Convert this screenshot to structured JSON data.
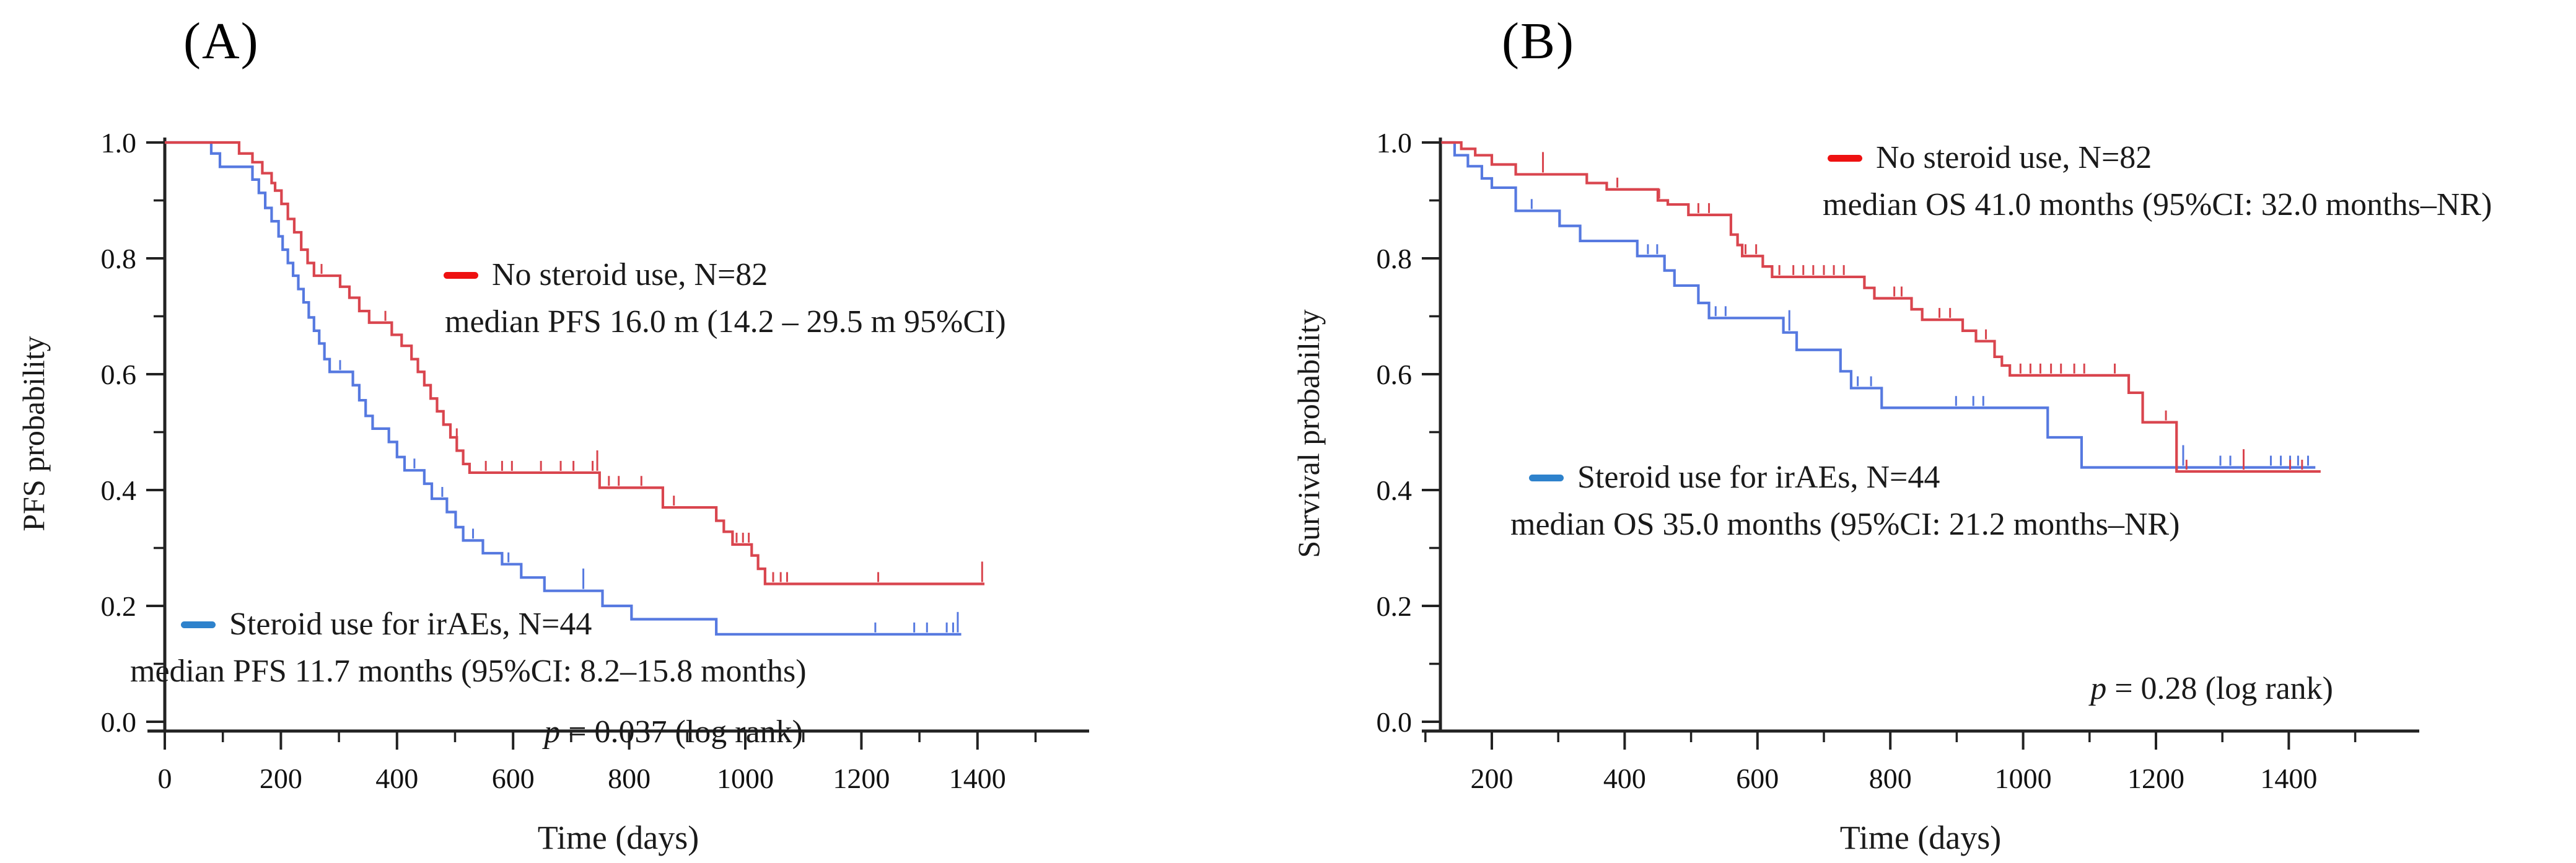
{
  "figure": {
    "background": "#ffffff",
    "text_color": "#1a1a1a",
    "red_curve_color": "#d9454e",
    "blue_curve_color": "#5679e0",
    "red_dash_color": "#ee1111",
    "blue_dash_color": "#2e82cc",
    "axis_color": "#222222"
  },
  "panels": [
    {
      "label": "(A)",
      "y_axis_title": "PFS probability",
      "x_axis_title": "Time (days)",
      "x_tick_labels": [
        "0",
        "200",
        "400",
        "600",
        "800",
        "1000",
        "1200",
        "1400"
      ],
      "y_tick_labels": [
        "1.0",
        "0.8",
        "0.6",
        "0.4",
        "0.2",
        "0.0"
      ],
      "legend_red": {
        "line1": "No steroid use, N=82",
        "line2": "median PFS 16.0 m (14.2 – 29.5 m 95%CI)"
      },
      "legend_blue": {
        "line1": "Steroid use for irAEs, N=44",
        "line2": "median PFS 11.7 months (95%CI: 8.2–15.8 months)"
      },
      "p_value": {
        "symbol": "p",
        "rest": " = 0.037 (log rank)"
      },
      "chart_data": {
        "type": "line",
        "subtype": "kaplan-meier-step",
        "title": "",
        "xlabel": "Time (days)",
        "ylabel": "PFS probability",
        "x_range": [
          0,
          1580
        ],
        "y_range": [
          0.0,
          1.0
        ],
        "x_major_ticks": [
          0,
          200,
          400,
          600,
          800,
          1000,
          1200,
          1400
        ],
        "x_minor_ticks": [
          100,
          300,
          500,
          700,
          900,
          1100,
          1300,
          1500
        ],
        "y_major_ticks": [
          1.0,
          0.8,
          0.6,
          0.4,
          0.2,
          0.0
        ],
        "y_minor_ticks": [
          0.9,
          0.7,
          0.5,
          0.3,
          0.1
        ],
        "grid": false,
        "series": [
          {
            "name": "Steroid use for irAEs, N=44",
            "color_key": "blue",
            "median_label": "median PFS 11.7 months",
            "steps": [
              [
                0,
                1.0
              ],
              [
                80,
                0.981
              ],
              [
                95,
                0.958
              ],
              [
                151,
                0.936
              ],
              [
                162,
                0.913
              ],
              [
                173,
                0.887
              ],
              [
                184,
                0.864
              ],
              [
                196,
                0.838
              ],
              [
                203,
                0.815
              ],
              [
                212,
                0.792
              ],
              [
                221,
                0.77
              ],
              [
                230,
                0.747
              ],
              [
                239,
                0.724
              ],
              [
                248,
                0.698
              ],
              [
                257,
                0.675
              ],
              [
                266,
                0.653
              ],
              [
                275,
                0.626
              ],
              [
                284,
                0.604
              ],
              [
                324,
                0.581
              ],
              [
                335,
                0.555
              ],
              [
                346,
                0.528
              ],
              [
                358,
                0.506
              ],
              [
                386,
                0.483
              ],
              [
                400,
                0.457
              ],
              [
                413,
                0.434
              ],
              [
                447,
                0.411
              ],
              [
                460,
                0.385
              ],
              [
                486,
                0.362
              ],
              [
                501,
                0.336
              ],
              [
                514,
                0.313
              ],
              [
                548,
                0.291
              ],
              [
                581,
                0.272
              ],
              [
                614,
                0.249
              ],
              [
                654,
                0.226
              ],
              [
                754,
                0.2
              ],
              [
                804,
                0.177
              ],
              [
                950,
                0.151
              ]
            ],
            "end_time": 1372,
            "censors": [
              302,
              430,
              478,
              531,
              592,
              1224,
              1291,
              1313,
              1347,
              1358
            ],
            "tall_censors": [
              721,
              1366
            ]
          },
          {
            "name": "No steroid use, N=82",
            "color_key": "red",
            "median_label": "median PFS 16.0 m",
            "steps": [
              [
                0,
                1.0
              ],
              [
                128,
                0.981
              ],
              [
                151,
                0.966
              ],
              [
                168,
                0.947
              ],
              [
                184,
                0.93
              ],
              [
                190,
                0.917
              ],
              [
                201,
                0.894
              ],
              [
                212,
                0.868
              ],
              [
                223,
                0.845
              ],
              [
                235,
                0.815
              ],
              [
                246,
                0.792
              ],
              [
                257,
                0.77
              ],
              [
                302,
                0.751
              ],
              [
                318,
                0.732
              ],
              [
                335,
                0.709
              ],
              [
                352,
                0.689
              ],
              [
                391,
                0.668
              ],
              [
                408,
                0.649
              ],
              [
                425,
                0.626
              ],
              [
                436,
                0.604
              ],
              [
                447,
                0.581
              ],
              [
                458,
                0.558
              ],
              [
                469,
                0.536
              ],
              [
                480,
                0.513
              ],
              [
                492,
                0.491
              ],
              [
                503,
                0.468
              ],
              [
                514,
                0.445
              ],
              [
                525,
                0.43
              ],
              [
                749,
                0.404
              ],
              [
                858,
                0.37
              ],
              [
                950,
                0.347
              ],
              [
                963,
                0.328
              ],
              [
                978,
                0.306
              ],
              [
                1011,
                0.287
              ],
              [
                1022,
                0.264
              ],
              [
                1034,
                0.238
              ]
            ],
            "end_time": 1412,
            "censors": [
              270,
              380,
              553,
              581,
              598,
              648,
              682,
              704,
              737,
              765,
              782,
              821,
              877,
              985,
              996,
              1006,
              1048,
              1061,
              1072,
              1229
            ],
            "tall_censors": [
              503,
              745,
              1408
            ]
          }
        ]
      }
    },
    {
      "label": "(B)",
      "y_axis_title": "Survival probability",
      "x_axis_title": "Time (days)",
      "x_tick_labels": [
        "200",
        "400",
        "600",
        "800",
        "1000",
        "1200",
        "1400"
      ],
      "y_tick_labels": [
        "1.0",
        "0.8",
        "0.6",
        "0.4",
        "0.2",
        "0.0"
      ],
      "legend_red": {
        "line1": "No steroid use, N=82",
        "line2": "median OS 41.0 months (95%CI: 32.0 months–NR)"
      },
      "legend_blue": {
        "line1": "Steroid use for irAEs, N=44",
        "line2": "median OS 35.0 months (95%CI: 21.2 months–NR)"
      },
      "p_value": {
        "symbol": "p",
        "rest": " = 0.28 (log rank)"
      },
      "chart_data": {
        "type": "line",
        "subtype": "kaplan-meier-step",
        "title": "",
        "xlabel": "Time (days)",
        "ylabel": "Survival probability",
        "x_range": [
          100,
          1580
        ],
        "y_range": [
          0.0,
          1.0
        ],
        "x_major_ticks": [
          200,
          400,
          600,
          800,
          1000,
          1200,
          1400
        ],
        "x_minor_ticks": [
          100,
          300,
          500,
          700,
          900,
          1100,
          1300,
          1500
        ],
        "y_major_ticks": [
          1.0,
          0.8,
          0.6,
          0.4,
          0.2,
          0.0
        ],
        "y_minor_ticks": [
          0.9,
          0.7,
          0.5,
          0.3,
          0.1
        ],
        "grid": false,
        "series": [
          {
            "name": "Steroid use for irAEs, N=44",
            "color_key": "blue",
            "median_label": "median OS 35.0 months",
            "steps": [
              [
                124,
                1.0
              ],
              [
                144,
                0.978
              ],
              [
                164,
                0.959
              ],
              [
                185,
                0.938
              ],
              [
                200,
                0.922
              ],
              [
                236,
                0.882
              ],
              [
                302,
                0.856
              ],
              [
                333,
                0.83
              ],
              [
                419,
                0.804
              ],
              [
                460,
                0.779
              ],
              [
                475,
                0.753
              ],
              [
                511,
                0.723
              ],
              [
                527,
                0.697
              ],
              [
                639,
                0.672
              ],
              [
                659,
                0.642
              ],
              [
                725,
                0.605
              ],
              [
                741,
                0.576
              ],
              [
                787,
                0.542
              ],
              [
                1037,
                0.491
              ],
              [
                1088,
                0.439
              ]
            ],
            "end_time": 1440,
            "censors": [
              260,
              435,
              449,
              537,
              552,
              751,
              771,
              899,
              925,
              940,
              1297,
              1312,
              1373,
              1388,
              1402,
              1414,
              1429
            ],
            "tall_censors": [
              648,
              1241
            ]
          },
          {
            "name": "No steroid use, N=82",
            "color_key": "red",
            "median_label": "median OS 41.0 months",
            "steps": [
              [
                124,
                1.0
              ],
              [
                154,
                0.989
              ],
              [
                175,
                0.978
              ],
              [
                200,
                0.962
              ],
              [
                236,
                0.945
              ],
              [
                343,
                0.93
              ],
              [
                373,
                0.919
              ],
              [
                450,
                0.9
              ],
              [
                465,
                0.893
              ],
              [
                496,
                0.875
              ],
              [
                560,
                0.841
              ],
              [
                570,
                0.823
              ],
              [
                577,
                0.804
              ],
              [
                608,
                0.786
              ],
              [
                622,
                0.768
              ],
              [
                761,
                0.749
              ],
              [
                776,
                0.731
              ],
              [
                832,
                0.712
              ],
              [
                848,
                0.694
              ],
              [
                909,
                0.675
              ],
              [
                929,
                0.657
              ],
              [
                957,
                0.63
              ],
              [
                968,
                0.615
              ],
              [
                980,
                0.598
              ],
              [
                1159,
                0.568
              ],
              [
                1180,
                0.517
              ],
              [
                1231,
                0.432
              ]
            ],
            "end_time": 1448,
            "censors": [
              389,
              452,
              511,
              527,
              582,
              598,
              633,
              654,
              669,
              684,
              700,
              715,
              730,
              806,
              817,
              874,
              890,
              944,
              996,
              1011,
              1026,
              1042,
              1057,
              1077,
              1092,
              1138,
              1215,
              1246,
              1402,
              1420
            ],
            "tall_censors": [
              277,
              1332
            ]
          }
        ]
      }
    }
  ]
}
